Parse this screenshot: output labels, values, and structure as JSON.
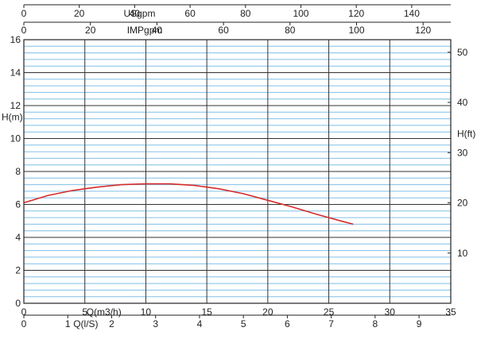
{
  "chart_data": {
    "type": "line",
    "title": "",
    "xlabel": "Q(m3/h)",
    "ylabel": "H(m)",
    "xlim": [
      0,
      35
    ],
    "ylim": [
      0,
      16
    ],
    "grid": true,
    "axes": {
      "bottom_primary": {
        "label": "Q(m3/h)",
        "ticks": [
          0,
          5,
          10,
          15,
          20,
          25,
          30,
          35
        ]
      },
      "bottom_secondary": {
        "label": "Q(l/S)",
        "ticks": [
          0,
          1,
          2,
          3,
          4,
          5,
          6,
          7,
          8,
          9
        ],
        "factor_from_m3h": 0.27778
      },
      "top_usgpm": {
        "label": "USgpm",
        "ticks": [
          0,
          20,
          40,
          60,
          80,
          100,
          120,
          140
        ],
        "factor_from_m3h": 4.4029
      },
      "top_impgpm": {
        "label": "IMPgpm",
        "ticks": [
          0,
          20,
          40,
          60,
          80,
          100,
          120
        ],
        "factor_from_m3h": 3.6662
      },
      "left": {
        "label": "H(m)",
        "ticks": [
          0,
          2,
          4,
          6,
          8,
          10,
          12,
          14,
          16
        ]
      },
      "right": {
        "label": "H(ft)",
        "ticks": [
          10,
          20,
          30,
          40,
          50
        ],
        "factor_from_m": 3.28084
      }
    },
    "series": [
      {
        "color": "#d62b2b",
        "x": [
          0,
          2,
          4,
          6,
          8,
          10,
          12,
          14,
          16,
          18,
          20,
          22,
          24,
          26,
          27
        ],
        "y": [
          6.1,
          6.55,
          6.85,
          7.05,
          7.2,
          7.25,
          7.25,
          7.15,
          6.95,
          6.65,
          6.25,
          5.85,
          5.4,
          5.0,
          4.8
        ]
      }
    ],
    "colors": {
      "major_grid": "#333333",
      "minor_grid": "#7fbfe6",
      "curve": "#d62b2b"
    }
  }
}
